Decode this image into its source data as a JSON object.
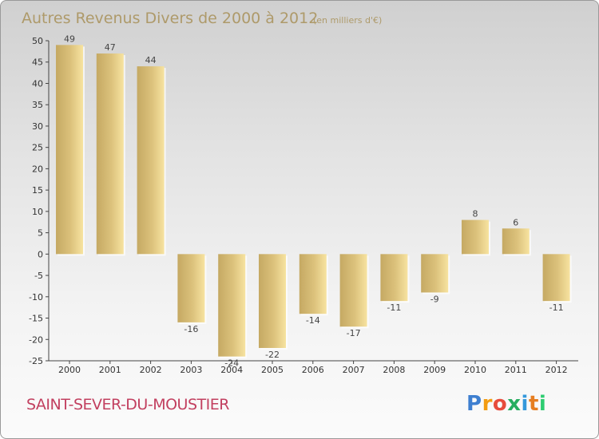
{
  "chart_data": {
    "type": "bar",
    "title": "Autres Revenus Divers de 2000 à 2012",
    "subtitle": "(en milliers d'€)",
    "categories": [
      "2000",
      "2001",
      "2002",
      "2003",
      "2004",
      "2005",
      "2006",
      "2007",
      "2008",
      "2009",
      "2010",
      "2011",
      "2012"
    ],
    "values": [
      49,
      47,
      44,
      -16,
      -24,
      -22,
      -14,
      -17,
      -11,
      -9,
      8,
      6,
      -11
    ],
    "value_labels": [
      "49",
      "47",
      "44",
      "-16",
      "-24",
      "-22",
      "-14",
      "-17",
      "-11",
      "-9",
      "8",
      "6",
      "-11"
    ],
    "ylim": [
      -25,
      50
    ],
    "yticks": [
      50,
      45,
      40,
      35,
      30,
      25,
      20,
      15,
      10,
      5,
      0,
      -5,
      -10,
      -15,
      -20,
      -25
    ],
    "grid": false,
    "bar_color_light": "#f7e3a0",
    "bar_color_dark": "#c5a963"
  },
  "commune_name": "SAINT-SEVER-DU-MOUSTIER",
  "logo": {
    "text": "Proxiti",
    "letters": [
      "P",
      "r",
      "o",
      "x",
      "i",
      "t",
      "i"
    ]
  },
  "colors": {
    "title": "#ae9a6a",
    "commune": "#c24060"
  }
}
